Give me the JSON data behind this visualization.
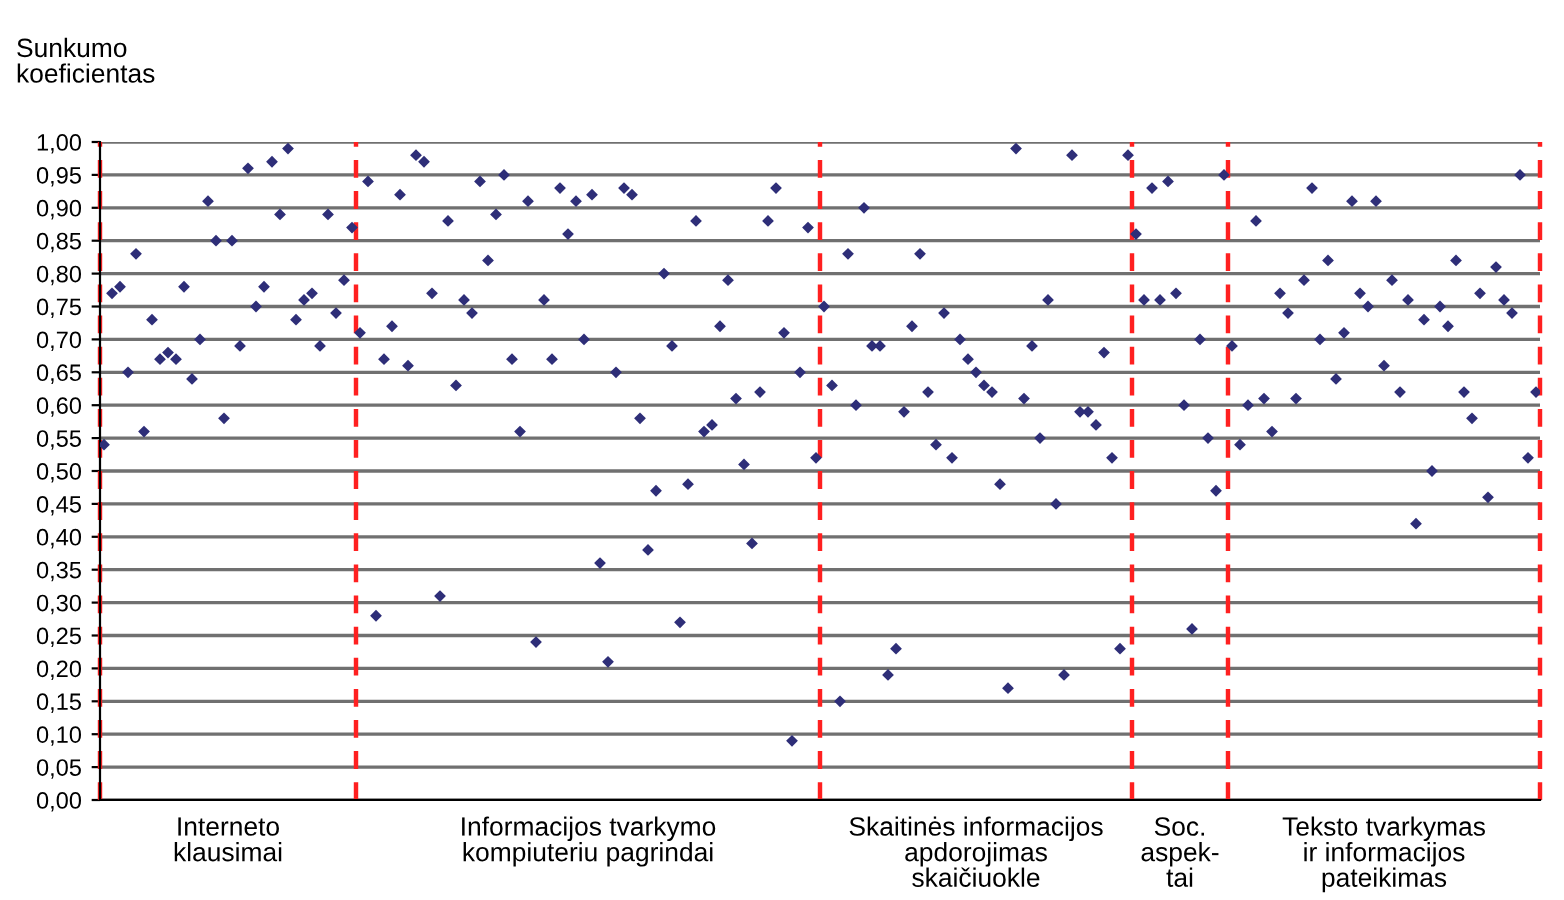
{
  "chart_data": {
    "type": "scatter",
    "ylabel": "Sunkumo\nkoeficientas",
    "categories": [
      null,
      null,
      null,
      null,
      null,
      null,
      null,
      null,
      null,
      null,
      null,
      null,
      null,
      null,
      null,
      null,
      null,
      null,
      null,
      null,
      null,
      null,
      null,
      null,
      null,
      null,
      null,
      null,
      null,
      null,
      null,
      null,
      null,
      null,
      null,
      null,
      null,
      null,
      null,
      null,
      null,
      null,
      null,
      null,
      null,
      null,
      null,
      null,
      null,
      null,
      null,
      null,
      null,
      null,
      null,
      null,
      null,
      null,
      null,
      null,
      null,
      null,
      null,
      null,
      null,
      null,
      null,
      null,
      null,
      null,
      null,
      null,
      null,
      null,
      null,
      null,
      null,
      null,
      null,
      null,
      null,
      null,
      null,
      null,
      null,
      null,
      null,
      null,
      null,
      null,
      null,
      null,
      null,
      null,
      null,
      null,
      null,
      null,
      null,
      null,
      null,
      null,
      null,
      null,
      null,
      null,
      null,
      null,
      null,
      null,
      null,
      null,
      null,
      null,
      null,
      null,
      null,
      null,
      null,
      null,
      null,
      null,
      null,
      null,
      null,
      null,
      null,
      null,
      null,
      null,
      null,
      null,
      null,
      null,
      null,
      null,
      null,
      null,
      null,
      null,
      null,
      null,
      null,
      null,
      null,
      null,
      null,
      null,
      null,
      null,
      null,
      null,
      null,
      null,
      null,
      null,
      null,
      null,
      null,
      null,
      null,
      null,
      null,
      null,
      null,
      null,
      null,
      null,
      null,
      null,
      null,
      null,
      null,
      null,
      null,
      null,
      null,
      null,
      null,
      null
    ],
    "series": [
      {
        "color": "#2e2e78",
        "values": [
          0.54,
          0.77,
          0.78,
          0.65,
          0.83,
          0.56,
          0.73,
          0.67,
          0.68,
          0.67,
          0.78,
          0.64,
          0.7,
          0.91,
          0.85,
          0.58,
          0.85,
          0.69,
          0.96,
          0.75,
          0.78,
          0.97,
          0.89,
          0.99,
          0.73,
          0.76,
          0.77,
          0.69,
          0.89,
          0.74,
          0.79,
          0.87,
          null,
          null,
          null,
          null,
          null,
          null,
          null,
          null,
          null,
          null,
          null,
          null,
          null,
          null,
          null,
          null,
          null,
          null,
          null,
          null,
          null,
          null,
          null,
          null,
          null,
          null,
          null,
          null,
          null,
          null,
          null,
          null,
          null,
          null,
          null,
          null,
          null,
          null,
          null,
          null,
          null,
          null,
          null,
          null,
          null,
          null,
          null,
          null,
          null,
          null,
          null,
          null,
          null,
          null,
          null,
          null,
          null,
          null,
          null,
          null,
          null,
          null,
          null,
          null,
          null,
          null,
          null,
          null,
          null,
          null,
          null,
          null,
          null,
          null,
          null,
          null,
          null,
          null,
          null,
          null,
          null,
          null,
          null,
          null,
          null,
          null,
          null,
          null,
          null,
          null,
          null,
          null,
          null,
          null,
          null,
          null,
          null,
          null,
          null,
          null,
          null,
          null,
          null,
          null,
          null,
          null,
          null,
          null,
          null,
          null,
          null,
          null,
          null,
          null,
          null,
          null,
          null,
          null,
          null,
          null,
          null,
          null,
          null,
          null,
          null,
          null,
          null,
          null,
          null,
          null,
          null,
          null,
          null,
          null,
          null,
          null,
          null,
          null,
          null,
          null,
          null,
          null,
          null,
          null,
          null,
          null,
          null,
          null
        ]
      },
      {
        "color": "#2e2e78",
        "values": [
          null,
          null,
          null,
          null,
          null,
          null,
          null,
          null,
          null,
          null,
          null,
          null,
          null,
          null,
          null,
          null,
          null,
          null,
          null,
          null,
          null,
          null,
          null,
          null,
          null,
          null,
          null,
          null,
          null,
          null,
          null,
          null,
          0.71,
          0.94,
          0.28,
          0.67,
          0.72,
          0.92,
          0.66,
          0.98,
          0.97,
          0.77,
          0.31,
          0.88,
          0.63,
          0.76,
          0.74,
          0.94,
          0.82,
          0.89,
          0.95,
          0.67,
          0.56,
          0.91,
          0.24,
          0.76,
          0.67,
          0.93,
          0.86,
          0.91,
          0.7,
          0.92,
          0.36,
          0.21,
          0.65,
          0.93,
          0.92,
          0.58,
          0.38,
          0.47,
          0.8,
          0.69,
          0.27,
          0.48,
          0.88,
          0.56,
          0.57,
          0.72,
          0.79,
          0.61,
          0.51,
          0.39,
          0.62,
          0.88,
          0.93,
          0.71,
          0.09,
          0.65,
          0.87,
          0.52,
          null,
          null,
          null,
          null,
          null,
          null,
          null,
          null,
          null,
          null,
          null,
          null,
          null,
          null,
          null,
          null,
          null,
          null,
          null,
          null,
          null,
          null,
          null,
          null,
          null,
          null,
          null,
          null,
          null,
          null,
          null,
          null,
          null,
          null,
          null,
          null,
          null,
          null,
          null,
          null,
          null,
          null,
          null,
          null,
          null,
          null,
          null,
          null,
          null,
          null,
          null,
          null,
          null,
          null,
          null,
          null,
          null,
          null,
          null,
          null,
          null,
          null,
          null,
          null,
          null,
          null,
          null,
          null,
          null,
          null,
          null,
          null,
          null,
          null,
          null,
          null,
          null,
          null,
          null,
          null,
          null,
          null,
          null,
          null,
          null,
          null,
          null,
          null,
          null,
          null
        ]
      },
      {
        "color": "#2e2e78",
        "values": [
          null,
          null,
          null,
          null,
          null,
          null,
          null,
          null,
          null,
          null,
          null,
          null,
          null,
          null,
          null,
          null,
          null,
          null,
          null,
          null,
          null,
          null,
          null,
          null,
          null,
          null,
          null,
          null,
          null,
          null,
          null,
          null,
          null,
          null,
          null,
          null,
          null,
          null,
          null,
          null,
          null,
          null,
          null,
          null,
          null,
          null,
          null,
          null,
          null,
          null,
          null,
          null,
          null,
          null,
          null,
          null,
          null,
          null,
          null,
          null,
          null,
          null,
          null,
          null,
          null,
          null,
          null,
          null,
          null,
          null,
          null,
          null,
          null,
          null,
          null,
          null,
          null,
          null,
          null,
          null,
          null,
          null,
          null,
          null,
          null,
          null,
          null,
          null,
          null,
          null,
          0.75,
          0.63,
          0.15,
          0.83,
          0.6,
          0.9,
          0.69,
          0.69,
          0.19,
          0.23,
          0.59,
          0.72,
          0.83,
          0.62,
          0.54,
          0.74,
          0.52,
          0.7,
          0.67,
          0.65,
          0.63,
          0.62,
          0.48,
          0.17,
          0.99,
          0.61,
          0.69,
          0.55,
          0.76,
          0.45,
          0.19,
          0.98,
          0.59,
          0.59,
          0.57,
          0.68,
          0.52,
          0.23,
          0.98,
          null,
          null,
          null,
          null,
          null,
          null,
          null,
          null,
          null,
          null,
          null,
          null,
          null,
          null,
          null,
          null,
          null,
          null,
          null,
          null,
          null,
          null,
          null,
          null,
          null,
          null,
          null,
          null,
          null,
          null,
          null,
          null,
          null,
          null,
          null,
          null,
          null,
          null,
          null,
          null,
          null,
          null,
          null,
          null,
          null,
          null,
          null,
          null,
          null,
          null,
          null
        ]
      },
      {
        "color": "#2e2e78",
        "values": [
          null,
          null,
          null,
          null,
          null,
          null,
          null,
          null,
          null,
          null,
          null,
          null,
          null,
          null,
          null,
          null,
          null,
          null,
          null,
          null,
          null,
          null,
          null,
          null,
          null,
          null,
          null,
          null,
          null,
          null,
          null,
          null,
          null,
          null,
          null,
          null,
          null,
          null,
          null,
          null,
          null,
          null,
          null,
          null,
          null,
          null,
          null,
          null,
          null,
          null,
          null,
          null,
          null,
          null,
          null,
          null,
          null,
          null,
          null,
          null,
          null,
          null,
          null,
          null,
          null,
          null,
          null,
          null,
          null,
          null,
          null,
          null,
          null,
          null,
          null,
          null,
          null,
          null,
          null,
          null,
          null,
          null,
          null,
          null,
          null,
          null,
          null,
          null,
          null,
          null,
          null,
          null,
          null,
          null,
          null,
          null,
          null,
          null,
          null,
          null,
          null,
          null,
          null,
          null,
          null,
          null,
          null,
          null,
          null,
          null,
          null,
          null,
          null,
          null,
          null,
          null,
          null,
          null,
          null,
          null,
          null,
          null,
          null,
          null,
          null,
          null,
          null,
          null,
          null,
          0.86,
          0.76,
          0.93,
          0.76,
          0.94,
          0.77,
          0.6,
          0.26,
          0.7,
          0.55,
          0.47,
          0.95,
          null,
          null,
          null,
          null,
          null,
          null,
          null,
          null,
          null,
          null,
          null,
          null,
          null,
          null,
          null,
          null,
          null,
          null,
          null,
          null,
          null,
          null,
          null,
          null,
          null,
          null,
          null,
          null,
          null,
          null,
          null,
          null,
          null,
          null,
          null,
          null,
          null,
          null,
          null
        ]
      },
      {
        "color": "#2e2e78",
        "values": [
          null,
          null,
          null,
          null,
          null,
          null,
          null,
          null,
          null,
          null,
          null,
          null,
          null,
          null,
          null,
          null,
          null,
          null,
          null,
          null,
          null,
          null,
          null,
          null,
          null,
          null,
          null,
          null,
          null,
          null,
          null,
          null,
          null,
          null,
          null,
          null,
          null,
          null,
          null,
          null,
          null,
          null,
          null,
          null,
          null,
          null,
          null,
          null,
          null,
          null,
          null,
          null,
          null,
          null,
          null,
          null,
          null,
          null,
          null,
          null,
          null,
          null,
          null,
          null,
          null,
          null,
          null,
          null,
          null,
          null,
          null,
          null,
          null,
          null,
          null,
          null,
          null,
          null,
          null,
          null,
          null,
          null,
          null,
          null,
          null,
          null,
          null,
          null,
          null,
          null,
          null,
          null,
          null,
          null,
          null,
          null,
          null,
          null,
          null,
          null,
          null,
          null,
          null,
          null,
          null,
          null,
          null,
          null,
          null,
          null,
          null,
          null,
          null,
          null,
          null,
          null,
          null,
          null,
          null,
          null,
          null,
          null,
          null,
          null,
          null,
          null,
          null,
          null,
          null,
          null,
          null,
          null,
          null,
          null,
          null,
          null,
          null,
          null,
          null,
          null,
          null,
          0.69,
          0.54,
          0.6,
          0.88,
          0.61,
          0.56,
          0.77,
          0.74,
          0.61,
          0.79,
          0.93,
          0.7,
          0.82,
          0.64,
          0.71,
          0.91,
          0.77,
          0.75,
          0.91,
          0.66,
          0.79,
          0.62,
          0.76,
          0.42,
          0.73,
          0.5,
          0.75,
          0.72,
          0.82,
          0.62,
          0.58,
          0.77,
          0.46,
          0.81,
          0.76,
          0.74,
          0.95,
          0.52,
          0.62
        ]
      }
    ],
    "marker": "diamond",
    "grid": "y",
    "ylim": [
      0,
      1
    ],
    "yticks": [
      {
        "value": 0.0,
        "label": "0,00"
      },
      {
        "value": 0.05,
        "label": "0,05"
      },
      {
        "value": 0.1,
        "label": "0,10"
      },
      {
        "value": 0.15,
        "label": "0,15"
      },
      {
        "value": 0.2,
        "label": "0,20"
      },
      {
        "value": 0.25,
        "label": "0,25"
      },
      {
        "value": 0.3,
        "label": "0,30"
      },
      {
        "value": 0.35,
        "label": "0,35"
      },
      {
        "value": 0.4,
        "label": "0,40"
      },
      {
        "value": 0.45,
        "label": "0,45"
      },
      {
        "value": 0.5,
        "label": "0,50"
      },
      {
        "value": 0.55,
        "label": "0,55"
      },
      {
        "value": 0.6,
        "label": "0,60"
      },
      {
        "value": 0.65,
        "label": "0,65"
      },
      {
        "value": 0.7,
        "label": "0,70"
      },
      {
        "value": 0.75,
        "label": "0,75"
      },
      {
        "value": 0.8,
        "label": "0,80"
      },
      {
        "value": 0.85,
        "label": "0,85"
      },
      {
        "value": 0.9,
        "label": "0,90"
      },
      {
        "value": 0.95,
        "label": "0,95"
      },
      {
        "value": 1.0,
        "label": "1,00"
      }
    ],
    "annotations": [
      "Interneto\nklausimai",
      "Informacijos tvarkymo\nkompiuteriu pagrindai",
      "Skaitinės informacijos\napdorojimas\nskaičiuokle",
      "Soc.\naspek-\ntai",
      "Teksto tvarkymas\nir informacijos\npateikimas"
    ],
    "tick_labels": "y"
  }
}
